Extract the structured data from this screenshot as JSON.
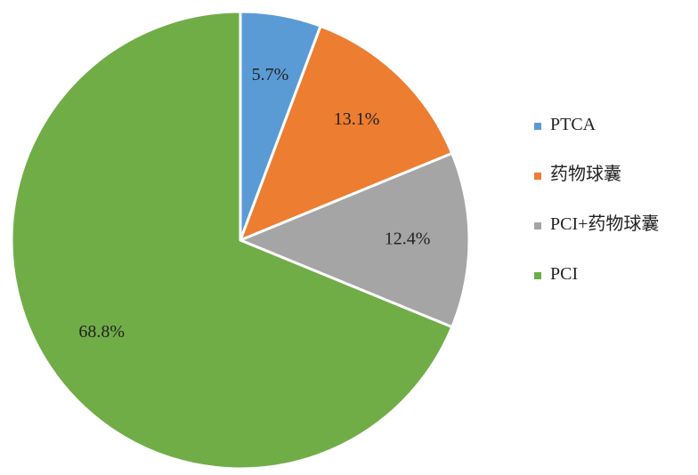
{
  "chart_data": {
    "type": "pie",
    "title": "",
    "start_angle_deg": 0,
    "direction": "clockwise",
    "slices": [
      {
        "name": "PTCA",
        "value": 5.7,
        "label": "5.7%",
        "color": "#5B9BD5"
      },
      {
        "name": "药物球囊",
        "value": 13.1,
        "label": "13.1%",
        "color": "#ED7D31"
      },
      {
        "name": "PCI+药物球囊",
        "value": 12.4,
        "label": "12.4%",
        "color": "#A5A5A5"
      },
      {
        "name": "PCI",
        "value": 68.8,
        "label": "68.8%",
        "color": "#70AD47"
      }
    ],
    "legend_position": "right"
  }
}
